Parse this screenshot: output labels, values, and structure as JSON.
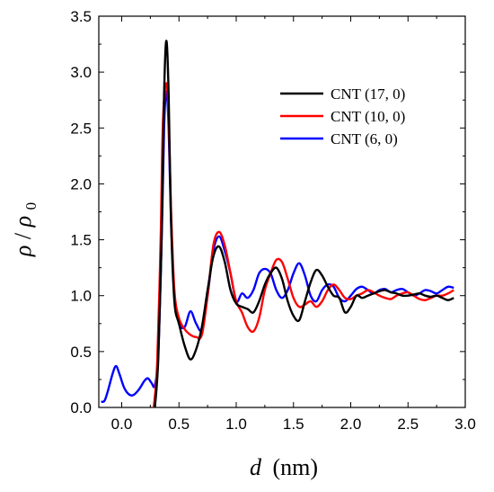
{
  "chart_data": {
    "type": "line",
    "xlabel": {
      "symbol": "d",
      "unit": "(nm)"
    },
    "ylabel": {
      "num": "ρ",
      "den": "ρ",
      "den_sub": "0"
    },
    "xlim": [
      -0.2,
      3.0
    ],
    "ylim": [
      0.0,
      3.5
    ],
    "x_ticks": [
      "0.0",
      "0.5",
      "1.0",
      "1.5",
      "2.0",
      "2.5",
      "3.0"
    ],
    "y_ticks": [
      "0.0",
      "0.5",
      "1.0",
      "1.5",
      "2.0",
      "2.5",
      "3.0",
      "3.5"
    ],
    "legend_position": "top-right",
    "grid": false,
    "series": [
      {
        "name": "CNT (17, 0)",
        "color": "#000000",
        "x": [
          0.29,
          0.32,
          0.35,
          0.37,
          0.39,
          0.41,
          0.43,
          0.46,
          0.5,
          0.55,
          0.6,
          0.65,
          0.7,
          0.75,
          0.8,
          0.85,
          0.9,
          0.95,
          1.0,
          1.05,
          1.1,
          1.15,
          1.2,
          1.25,
          1.3,
          1.35,
          1.4,
          1.45,
          1.5,
          1.55,
          1.6,
          1.65,
          1.7,
          1.75,
          1.8,
          1.85,
          1.9,
          1.95,
          2.0,
          2.05,
          2.1,
          2.15,
          2.2,
          2.25,
          2.3,
          2.35,
          2.4,
          2.45,
          2.5,
          2.55,
          2.6,
          2.65,
          2.7,
          2.75,
          2.8,
          2.85,
          2.9
        ],
        "y": [
          0.0,
          0.45,
          1.6,
          2.8,
          3.28,
          2.8,
          1.7,
          0.95,
          0.75,
          0.55,
          0.43,
          0.52,
          0.72,
          1.05,
          1.35,
          1.44,
          1.3,
          1.05,
          0.93,
          0.9,
          0.88,
          0.85,
          0.95,
          1.1,
          1.2,
          1.25,
          1.15,
          0.95,
          0.82,
          0.78,
          0.95,
          1.12,
          1.23,
          1.18,
          1.08,
          1.0,
          0.98,
          0.85,
          0.9,
          1.0,
          0.98,
          1.0,
          1.02,
          1.04,
          1.05,
          1.03,
          1.02,
          1.0,
          1.0,
          1.01,
          1.02,
          1.0,
          0.99,
          1.0,
          0.98,
          0.96,
          0.98
        ]
      },
      {
        "name": "CNT (10, 0)",
        "color": "#ff0000",
        "x": [
          0.28,
          0.31,
          0.34,
          0.36,
          0.39,
          0.41,
          0.43,
          0.46,
          0.5,
          0.55,
          0.6,
          0.65,
          0.7,
          0.75,
          0.8,
          0.85,
          0.9,
          0.95,
          1.0,
          1.05,
          1.1,
          1.15,
          1.2,
          1.25,
          1.3,
          1.35,
          1.4,
          1.45,
          1.5,
          1.55,
          1.6,
          1.65,
          1.7,
          1.75,
          1.8,
          1.85,
          1.9,
          1.95,
          2.0,
          2.05,
          2.1,
          2.15,
          2.2,
          2.25,
          2.3,
          2.35,
          2.4,
          2.45,
          2.5,
          2.55,
          2.6,
          2.65,
          2.7,
          2.75,
          2.8,
          2.85,
          2.9
        ],
        "y": [
          0.0,
          0.4,
          1.5,
          2.55,
          2.9,
          2.6,
          1.8,
          1.05,
          0.8,
          0.7,
          0.65,
          0.63,
          0.65,
          1.0,
          1.45,
          1.57,
          1.45,
          1.2,
          0.95,
          0.85,
          0.72,
          0.68,
          0.8,
          1.05,
          1.2,
          1.32,
          1.3,
          1.15,
          0.98,
          0.9,
          0.92,
          0.95,
          0.9,
          0.95,
          1.05,
          1.1,
          1.05,
          0.98,
          0.97,
          1.0,
          1.02,
          1.05,
          1.03,
          1.0,
          0.98,
          0.97,
          1.0,
          1.02,
          1.03,
          1.0,
          0.97,
          0.96,
          0.98,
          1.0,
          1.0,
          1.02,
          1.05
        ]
      },
      {
        "name": "CNT (6, 0)",
        "color": "#0000ff",
        "x": [
          -0.18,
          -0.15,
          -0.12,
          -0.08,
          -0.05,
          -0.02,
          0.02,
          0.06,
          0.1,
          0.15,
          0.2,
          0.23,
          0.26,
          0.29,
          0.32,
          0.35,
          0.37,
          0.39,
          0.41,
          0.43,
          0.46,
          0.5,
          0.55,
          0.6,
          0.65,
          0.7,
          0.75,
          0.8,
          0.85,
          0.9,
          0.95,
          1.0,
          1.05,
          1.1,
          1.15,
          1.2,
          1.25,
          1.3,
          1.35,
          1.4,
          1.45,
          1.5,
          1.55,
          1.6,
          1.65,
          1.7,
          1.75,
          1.8,
          1.85,
          1.9,
          1.95,
          2.0,
          2.05,
          2.1,
          2.15,
          2.2,
          2.25,
          2.3,
          2.35,
          2.4,
          2.45,
          2.5,
          2.55,
          2.6,
          2.65,
          2.7,
          2.75,
          2.8,
          2.85,
          2.9
        ],
        "y": [
          0.05,
          0.06,
          0.15,
          0.3,
          0.37,
          0.3,
          0.18,
          0.12,
          0.11,
          0.16,
          0.24,
          0.26,
          0.22,
          0.2,
          0.5,
          1.55,
          2.5,
          2.83,
          2.5,
          1.7,
          1.0,
          0.75,
          0.72,
          0.86,
          0.75,
          0.7,
          1.0,
          1.4,
          1.53,
          1.4,
          1.2,
          0.95,
          1.02,
          0.98,
          1.05,
          1.2,
          1.24,
          1.2,
          1.05,
          0.98,
          1.05,
          1.2,
          1.29,
          1.18,
          1.0,
          0.95,
          1.05,
          1.1,
          1.08,
          0.98,
          0.95,
          1.0,
          1.06,
          1.08,
          1.05,
          1.02,
          1.05,
          1.06,
          1.03,
          1.05,
          1.06,
          1.03,
          1.0,
          1.02,
          1.05,
          1.04,
          1.02,
          1.05,
          1.08,
          1.07
        ]
      }
    ]
  }
}
